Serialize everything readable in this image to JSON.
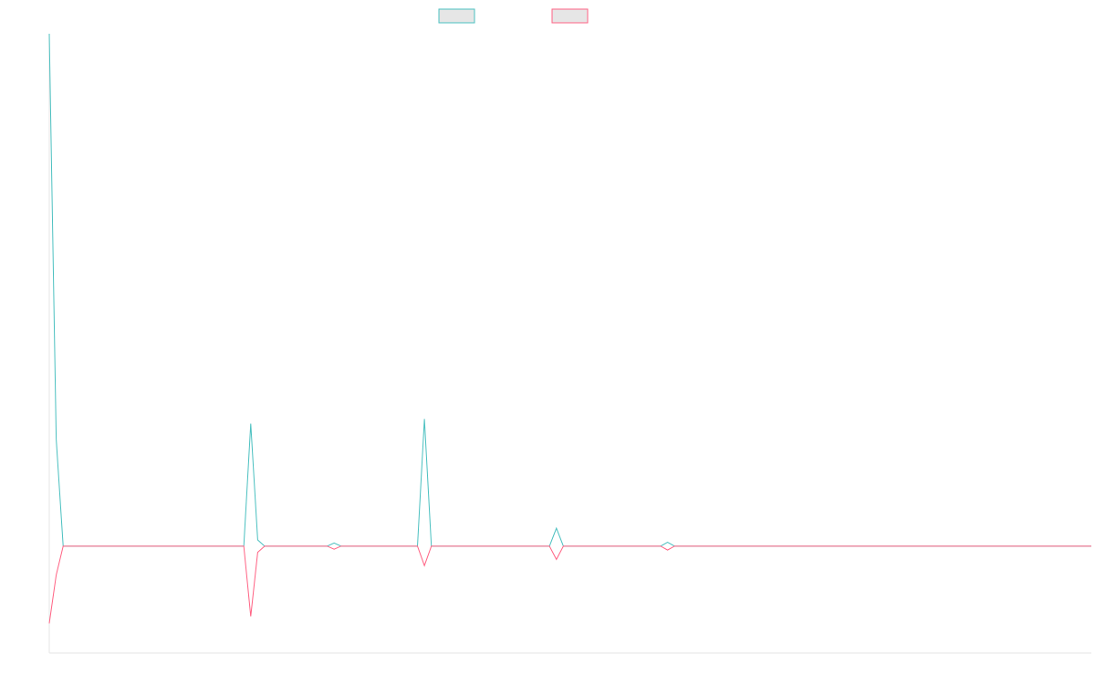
{
  "chart_data": {
    "type": "line",
    "title": "",
    "xlabel": "",
    "ylabel": "",
    "legend_position": "top-center",
    "grid": false,
    "ylim": [
      -1.37,
      6.57
    ],
    "series": [
      {
        "color": "#4bc0c0",
        "points": [
          [
            0,
            6.57
          ],
          [
            1,
            1.37
          ],
          [
            2,
            0
          ],
          [
            28,
            0
          ],
          [
            29,
            1.57
          ],
          [
            30,
            0.08
          ],
          [
            31,
            0
          ],
          [
            40,
            0
          ],
          [
            41,
            0.04
          ],
          [
            42,
            0
          ],
          [
            53,
            0
          ],
          [
            54,
            1.63
          ],
          [
            55,
            0
          ],
          [
            72,
            0
          ],
          [
            73,
            0.23
          ],
          [
            74,
            0
          ],
          [
            88,
            0
          ],
          [
            89,
            0.05
          ],
          [
            90,
            0
          ],
          [
            150,
            0
          ]
        ]
      },
      {
        "color": "#ff6384",
        "points": [
          [
            0,
            -0.99
          ],
          [
            1,
            -0.37
          ],
          [
            2,
            0
          ],
          [
            28,
            0
          ],
          [
            29,
            -0.9
          ],
          [
            30,
            -0.08
          ],
          [
            31,
            0
          ],
          [
            40,
            0
          ],
          [
            41,
            -0.04
          ],
          [
            42,
            0
          ],
          [
            53,
            0
          ],
          [
            54,
            -0.25
          ],
          [
            55,
            0
          ],
          [
            72,
            0
          ],
          [
            73,
            -0.17
          ],
          [
            74,
            0
          ],
          [
            88,
            0
          ],
          [
            89,
            -0.05
          ],
          [
            90,
            0
          ],
          [
            150,
            0
          ]
        ]
      }
    ]
  }
}
